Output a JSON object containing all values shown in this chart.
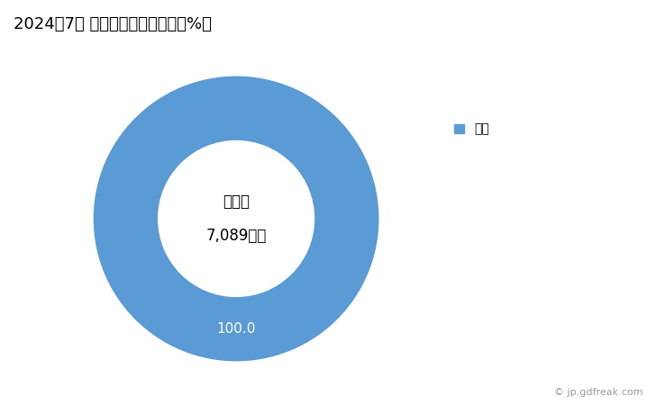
{
  "title": "2024年7月 輸出相手国のシェア（%）",
  "title_fontsize": 13,
  "slices": [
    100.0
  ],
  "labels": [
    "中国"
  ],
  "colors": [
    "#5B9BD5"
  ],
  "center_label_line1": "総　額",
  "center_label_line2": "7,089万円",
  "slice_label": "100.0",
  "legend_label": "中国",
  "watermark": "© jp.gdfreak.com",
  "background_color": "#ffffff",
  "donut_width": 0.45
}
